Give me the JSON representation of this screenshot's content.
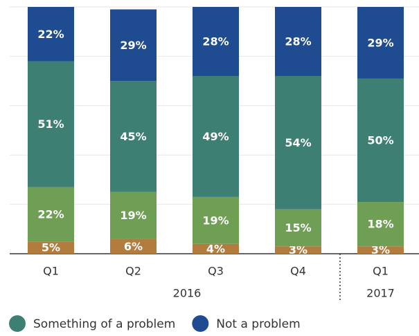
{
  "chart_data": {
    "type": "stacked_bar",
    "categories": [
      "Q1",
      "Q2",
      "Q3",
      "Q4",
      "Q1"
    ],
    "x_groups": [
      {
        "label": "2016",
        "span": 4
      },
      {
        "label": "2017",
        "span": 1
      }
    ],
    "series": [
      {
        "color": "#b27c3e",
        "values": [
          5,
          6,
          4,
          3,
          3
        ],
        "value_labels": [
          "5%",
          "6%",
          "4%",
          "3%",
          "3%"
        ]
      },
      {
        "color": "#6e9f55",
        "values": [
          22,
          19,
          19,
          15,
          18
        ],
        "value_labels": [
          "22%",
          "19%",
          "19%",
          "15%",
          "18%"
        ]
      },
      {
        "name": "Something of a problem",
        "color": "#3e7f74",
        "values": [
          51,
          45,
          49,
          54,
          50
        ],
        "value_labels": [
          "51%",
          "45%",
          "49%",
          "54%",
          "50%"
        ]
      },
      {
        "name": "Not a problem",
        "color": "#1f4b91",
        "values": [
          22,
          29,
          28,
          28,
          29
        ],
        "value_labels": [
          "22%",
          "29%",
          "28%",
          "28%",
          "29%"
        ]
      }
    ],
    "ylim": [
      0,
      100
    ],
    "yticks": [
      0,
      20,
      40,
      60,
      80,
      100
    ],
    "grid": true,
    "legend": "bottom"
  }
}
